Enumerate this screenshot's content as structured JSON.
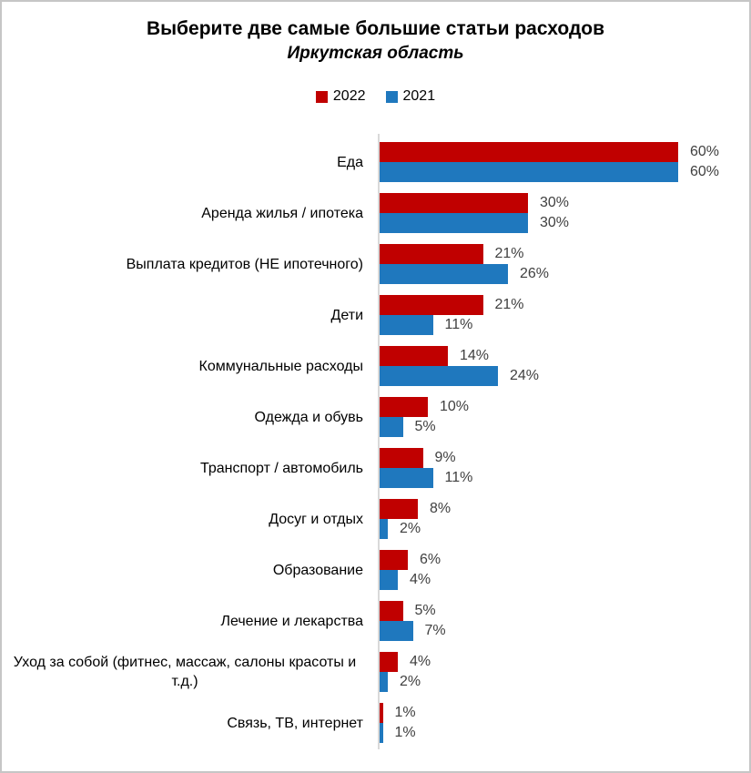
{
  "title": "Выберите две самые большие статьи расходов",
  "subtitle": "Иркутская область",
  "legend": {
    "items": [
      {
        "label": "2022",
        "color": "#c00000"
      },
      {
        "label": "2021",
        "color": "#1f78be"
      }
    ]
  },
  "colors": {
    "series_2022": "#c00000",
    "series_2021": "#1f78be",
    "axis_line": "#d9d9d9",
    "value_label_text": "#404040",
    "frame_border": "#c6c6c6",
    "background": "#ffffff"
  },
  "chart_data": {
    "type": "bar",
    "orientation": "horizontal",
    "title": "Выберите две самые большие статьи расходов",
    "subtitle": "Иркутская область",
    "legend_position": "top-center",
    "grid": false,
    "xlim": [
      0,
      72
    ],
    "value_suffix": "%",
    "categories": [
      "Еда",
      "Аренда жилья / ипотека",
      "Выплата кредитов (НЕ ипотечного)",
      "Дети",
      "Коммунальные расходы",
      "Одежда и обувь",
      "Транспорт / автомобиль",
      "Досуг и отдых",
      "Образование",
      "Лечение и лекарства",
      "Уход за собой (фитнес, массаж, салоны красоты и т.д.)",
      "Связь, ТВ, интернет"
    ],
    "series": [
      {
        "name": "2022",
        "color": "#c00000",
        "values": [
          60,
          30,
          21,
          21,
          14,
          10,
          9,
          8,
          6,
          5,
          4,
          1
        ]
      },
      {
        "name": "2021",
        "color": "#1f78be",
        "values": [
          60,
          30,
          26,
          11,
          24,
          5,
          11,
          2,
          4,
          7,
          2,
          1
        ]
      }
    ]
  }
}
